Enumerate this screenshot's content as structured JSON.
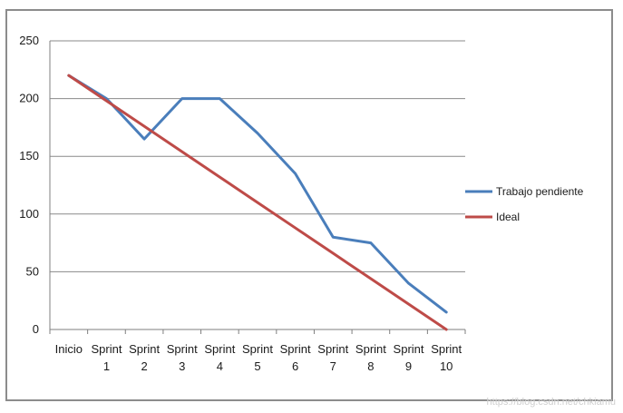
{
  "chart_data": {
    "type": "line",
    "title": "",
    "xlabel": "",
    "ylabel": "",
    "categories": [
      [
        "Inicio"
      ],
      [
        "Sprint",
        "1"
      ],
      [
        "Sprint",
        "2"
      ],
      [
        "Sprint",
        "3"
      ],
      [
        "Sprint",
        "4"
      ],
      [
        "Sprint",
        "5"
      ],
      [
        "Sprint",
        "6"
      ],
      [
        "Sprint",
        "7"
      ],
      [
        "Sprint",
        "8"
      ],
      [
        "Sprint",
        "9"
      ],
      [
        "Sprint",
        "10"
      ]
    ],
    "ylim": [
      0,
      250
    ],
    "yticks": [
      0,
      50,
      100,
      150,
      200,
      250
    ],
    "grid": "horizontal",
    "legend_position": "right",
    "series": [
      {
        "name": "Trabajo pendiente",
        "color": "#4a7ebb",
        "values": [
          220,
          200,
          165,
          200,
          200,
          170,
          135,
          80,
          75,
          40,
          15
        ]
      },
      {
        "name": "Ideal",
        "color": "#be4b48",
        "values": [
          220,
          198,
          176,
          154,
          132,
          110,
          88,
          66,
          44,
          22,
          0
        ]
      }
    ]
  },
  "watermark": "https://blog.csdn.net/chkiamu"
}
